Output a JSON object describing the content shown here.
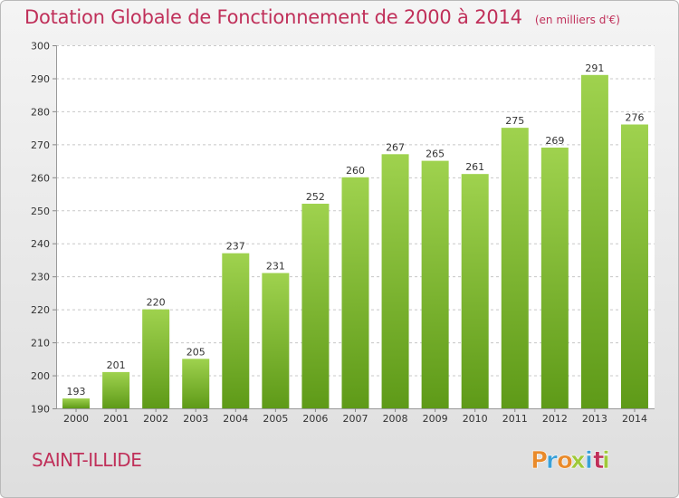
{
  "chart_data": {
    "type": "bar",
    "title": "Dotation Globale de Fonctionnement de 2000 à 2014",
    "subtitle": "(en milliers d'€)",
    "categories": [
      "2000",
      "2001",
      "2002",
      "2003",
      "2004",
      "2005",
      "2006",
      "2007",
      "2008",
      "2009",
      "2010",
      "2011",
      "2012",
      "2013",
      "2014"
    ],
    "values": [
      193,
      201,
      220,
      205,
      237,
      231,
      252,
      260,
      267,
      265,
      261,
      275,
      269,
      291,
      276
    ],
    "ylim": [
      190,
      300
    ],
    "yticks": [
      190,
      200,
      210,
      220,
      230,
      240,
      250,
      260,
      270,
      280,
      290,
      300
    ],
    "grid": true,
    "xlabel": "",
    "ylabel": "",
    "bar_color_top": "#9fd24e",
    "bar_color_bottom": "#5e9a18"
  },
  "footer": {
    "place": "SAINT-ILLIDE",
    "logo_text": "Proxiti"
  },
  "colors": {
    "title": "#c0305a",
    "logo_letters": [
      "#e98a2a",
      "#39a0d8",
      "#e98a2a",
      "#9fc93a",
      "#39a0d8",
      "#c0305a",
      "#9fc93a"
    ]
  }
}
